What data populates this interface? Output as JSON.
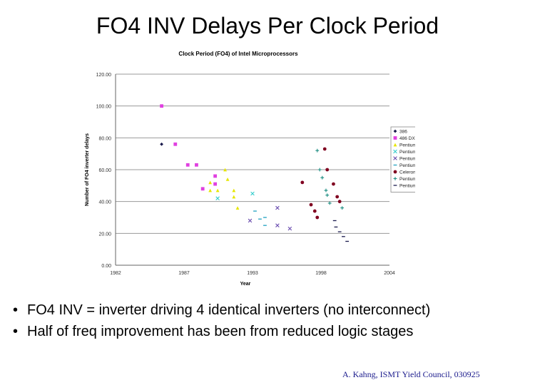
{
  "slide": {
    "title": "FO4 INV Delays Per Clock Period",
    "bullets": [
      "FO4 INV = inverter driving 4 identical inverters (no interconnect)",
      "Half of freq improvement has been from reduced logic stages"
    ],
    "footer": "A. Kahng, ISMT Yield Council, 030925"
  },
  "chart_data": {
    "type": "scatter",
    "title": "Clock Period (FO4) of Intel Microprocessors",
    "xlabel": "Year",
    "ylabel": "Number of FO4 inverter delays",
    "xlim": [
      1982,
      2004
    ],
    "ylim": [
      0,
      120
    ],
    "x_ticks": [
      "1982",
      "1987",
      "1993",
      "1998",
      "2004"
    ],
    "x_tick_values": [
      1982,
      1987.5,
      1993,
      1998.5,
      2004
    ],
    "y_ticks": [
      "0.00",
      "20.00",
      "40.00",
      "60.00",
      "80.00",
      "100.00",
      "120.00"
    ],
    "y_tick_values": [
      0,
      20,
      40,
      60,
      80,
      100,
      120
    ],
    "grid": true,
    "legend_position": "right",
    "series": [
      {
        "name": "386",
        "color": "#1a1a4d",
        "marker": "diamond",
        "points": [
          [
            1985.7,
            76
          ]
        ]
      },
      {
        "name": "486 DX2 DX4",
        "color": "#e040e0",
        "marker": "square",
        "points": [
          [
            1985.7,
            100
          ],
          [
            1986.8,
            76
          ],
          [
            1987.8,
            63
          ],
          [
            1988.5,
            63
          ],
          [
            1989.0,
            48
          ],
          [
            1990.0,
            56
          ],
          [
            1990.0,
            51
          ]
        ]
      },
      {
        "name": "Pentium",
        "color": "#e6e600",
        "marker": "triangle",
        "points": [
          [
            1989.6,
            52
          ],
          [
            1989.6,
            47
          ],
          [
            1990.8,
            60
          ],
          [
            1991.0,
            54
          ],
          [
            1991.5,
            47
          ],
          [
            1991.5,
            43
          ],
          [
            1991.8,
            36
          ],
          [
            1990.2,
            47
          ]
        ]
      },
      {
        "name": "Pentium MMX",
        "color": "#33cccc",
        "marker": "x",
        "points": [
          [
            1990.2,
            42
          ],
          [
            1993.0,
            45
          ]
        ]
      },
      {
        "name": "Pentium Pro",
        "color": "#6a4caf",
        "marker": "x",
        "points": [
          [
            1992.8,
            28
          ],
          [
            1995.0,
            36
          ],
          [
            1995.0,
            25
          ],
          [
            1996.0,
            23
          ]
        ]
      },
      {
        "name": "Pentium II",
        "color": "#1fa0c0",
        "marker": "dash",
        "points": [
          [
            1993.2,
            34
          ],
          [
            1993.6,
            29
          ],
          [
            1994.0,
            30
          ],
          [
            1994.0,
            25
          ]
        ]
      },
      {
        "name": "Celeron",
        "color": "#800020",
        "marker": "circle",
        "points": [
          [
            1997.0,
            52
          ],
          [
            1997.7,
            38
          ],
          [
            1998.0,
            34
          ],
          [
            1998.2,
            30
          ],
          [
            1998.8,
            73
          ],
          [
            1999.0,
            60
          ],
          [
            1999.5,
            51
          ],
          [
            1999.8,
            43
          ],
          [
            2000.0,
            40
          ]
        ]
      },
      {
        "name": "Pentium III",
        "color": "#1a8c80",
        "marker": "plus",
        "points": [
          [
            1998.2,
            72
          ],
          [
            1998.4,
            60
          ],
          [
            1998.6,
            55
          ],
          [
            1998.9,
            47
          ],
          [
            1999.0,
            44
          ],
          [
            1999.2,
            39
          ],
          [
            2000.2,
            36
          ]
        ]
      },
      {
        "name": "Pentium 4",
        "color": "#1a1a4d",
        "marker": "dash",
        "points": [
          [
            1999.6,
            28
          ],
          [
            1999.7,
            24
          ],
          [
            2000.0,
            21
          ],
          [
            2000.3,
            18
          ],
          [
            2000.6,
            15
          ]
        ]
      }
    ]
  }
}
